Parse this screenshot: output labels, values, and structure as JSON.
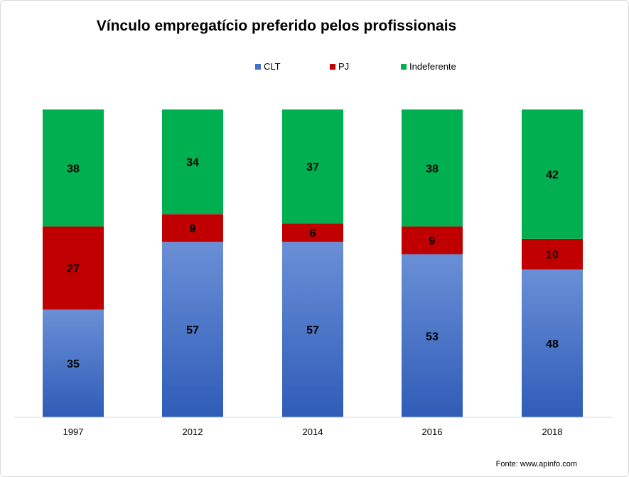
{
  "chart_data": {
    "type": "bar",
    "stacked": true,
    "normalized_100": true,
    "title": "Vínculo empregatício preferido pelos profissionais",
    "categories": [
      "1997",
      "2012",
      "2014",
      "2016",
      "2018"
    ],
    "series": [
      {
        "name": "CLT",
        "values": [
          35,
          57,
          57,
          53,
          48
        ],
        "color": "#4472c4"
      },
      {
        "name": "PJ",
        "values": [
          27,
          9,
          6,
          9,
          10
        ],
        "color": "#c00000"
      },
      {
        "name": "Indeferente",
        "values": [
          38,
          34,
          37,
          38,
          42
        ],
        "color": "#00b050"
      }
    ],
    "legend_position": "top",
    "grid": false,
    "source": "Fonte:  www.apinfo.com"
  }
}
